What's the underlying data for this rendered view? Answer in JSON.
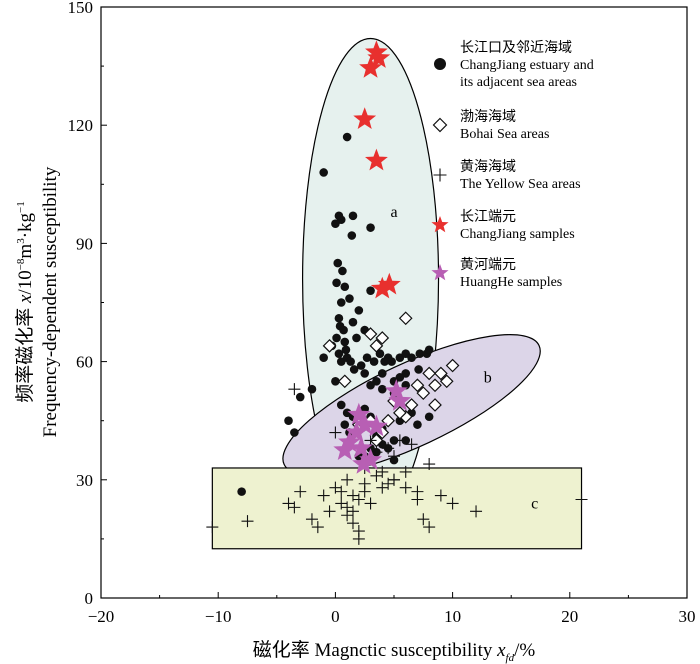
{
  "chart_data": {
    "type": "scatter",
    "xlabel": "磁化率 Magnctic susceptibility x_fd/%",
    "xlabel_parts": {
      "prefix": "磁化率 Magnctic susceptibility ",
      "var": "x",
      "sub": "fd",
      "suffix": "/%"
    },
    "ylabel": "频率磁化率 x/10⁻⁸m³·kg⁻¹ Frequency-dependent susceptibility",
    "ylabel_line1_parts": {
      "prefix": "频率磁化率 ",
      "var": "x",
      "unit": "/10",
      "sup1": "−8",
      "m": "m",
      "sup2": "3",
      "kg": "·kg",
      "sup3": "−1"
    },
    "ylabel_line2": "Frequency-dependent susceptibility",
    "xlim": [
      -20,
      30
    ],
    "ylim": [
      0,
      150
    ],
    "xticks": [
      "−20",
      "−10",
      "0",
      "10",
      "20",
      "30"
    ],
    "yticks": [
      "0",
      "30",
      "60",
      "90",
      "120",
      "150"
    ],
    "grid": false,
    "legend_position": "top-right",
    "legend": [
      {
        "marker": "circle",
        "color": "#111111",
        "zh": "长江口及邻近海域",
        "en1": "ChangJiang estuary and",
        "en2": "its adjacent sea areas"
      },
      {
        "marker": "diamond",
        "color": "#111111",
        "zh": "渤海海域",
        "en1": "Bohai Sea areas",
        "en2": ""
      },
      {
        "marker": "cross",
        "color": "#111111",
        "zh": "黄海海域",
        "en1": "The Yellow Sea areas",
        "en2": ""
      },
      {
        "marker": "star",
        "color": "#e8302e",
        "zh": "长江端元",
        "en1": "ChangJiang samples",
        "en2": ""
      },
      {
        "marker": "star",
        "color": "#b85fb4",
        "zh": "黄河端元",
        "en1": "HuangHe samples",
        "en2": ""
      }
    ],
    "regions": [
      {
        "label": "a",
        "shape": "ellipse",
        "fill": "#e6f1ee",
        "cx": 3,
        "cy": 81,
        "rx": 5.8,
        "ry": 61,
        "rotate": 0
      },
      {
        "label": "b",
        "shape": "ellipse",
        "fill": "#dcd5e8",
        "cx": 6.5,
        "cy": 49,
        "rx": 12,
        "ry": 10.5,
        "rotate": 25
      },
      {
        "label": "c",
        "shape": "rect",
        "fill": "#eef2d0",
        "x0": -10.5,
        "x1": 21,
        "y0": 12.5,
        "y1": 33
      }
    ],
    "region_label_positions": {
      "a": [
        5,
        98
      ],
      "b": [
        13,
        56
      ],
      "c": [
        17,
        24
      ]
    },
    "series": [
      {
        "name": "长江口及邻近海域 ChangJiang estuary and its adjacent sea areas",
        "marker": "circle",
        "color": "#111111",
        "x": [
          1,
          -1,
          0.5,
          0,
          0.3,
          1.5,
          1.4,
          0.2,
          0.6,
          3,
          0.1,
          0.8,
          1.2,
          3,
          0.5,
          2,
          0.3,
          1.5,
          0.4,
          0.7,
          2.5,
          0.1,
          0.8,
          1.8,
          0.9,
          -0.3,
          0.3,
          0.5,
          1,
          1.3,
          1.6,
          2.2,
          2.7,
          3.3,
          4.5,
          4.2,
          3.8,
          4.8,
          5.5,
          6,
          6.5,
          7.2,
          7.8,
          8,
          4,
          6,
          5.5,
          7.1,
          2.5,
          3.5,
          5,
          6,
          7,
          3,
          4,
          5,
          -1,
          0,
          -2,
          -3,
          -4,
          -3.5,
          0.5,
          1,
          1.5,
          2,
          0.8,
          1.2,
          2.5,
          3,
          3.5,
          4,
          5.5,
          6.5,
          7,
          8,
          5,
          4.5,
          3.5,
          2.5,
          6,
          5,
          4,
          3,
          2,
          -8
        ],
        "y": [
          117,
          108,
          96,
          95,
          97,
          97,
          92,
          85,
          83,
          94,
          80,
          79,
          76,
          78,
          75,
          73,
          71,
          70,
          69,
          68,
          68,
          66,
          65,
          66,
          63,
          64,
          62,
          60,
          61,
          60,
          58,
          59,
          61,
          60,
          61,
          60,
          62,
          60,
          61,
          62,
          61,
          62,
          62,
          63,
          57,
          57,
          56,
          58,
          57,
          55,
          55,
          54,
          54,
          54,
          53,
          52,
          61,
          55,
          53,
          51,
          45,
          42,
          49,
          47,
          46,
          45,
          44,
          42,
          48,
          46,
          41,
          43,
          45,
          47,
          44,
          46,
          40,
          38,
          37,
          36,
          40,
          35,
          39,
          38,
          36,
          27
        ]
      },
      {
        "name": "渤海海域 Bohai Sea areas",
        "marker": "diamond",
        "color": "#111111",
        "x": [
          6,
          10,
          9,
          9.5,
          8,
          8.5,
          4,
          3.5,
          3,
          -0.5,
          0.8,
          7,
          7.5,
          8.5,
          6,
          5.5,
          4.5,
          6.5,
          5,
          3,
          2,
          4,
          3.5,
          2.5
        ],
        "y": [
          71,
          59,
          57,
          55,
          57,
          54,
          66,
          64,
          67,
          64,
          55,
          54,
          52,
          49,
          46,
          47,
          45,
          49,
          50,
          45,
          44,
          42,
          40,
          44
        ]
      },
      {
        "name": "黄海海域 The Yellow Sea areas",
        "marker": "cross",
        "color": "#111111",
        "x": [
          -10.5,
          -7.5,
          -4,
          -3,
          -3.5,
          -1,
          0,
          1,
          1.5,
          2,
          2.5,
          3,
          4,
          4.5,
          5,
          6,
          7,
          7.5,
          8,
          9,
          10,
          12,
          21,
          -2,
          -1.5,
          -0.5,
          0.5,
          1,
          1.5,
          2.5,
          3.5,
          4,
          5,
          6,
          7,
          2,
          2,
          1.5,
          1,
          0.5,
          3.5,
          4.5,
          5.5,
          6.5,
          -3.5,
          0,
          3,
          5,
          8,
          2.5
        ],
        "y": [
          18,
          19.5,
          24,
          27,
          23,
          26,
          28,
          30,
          22,
          25,
          27,
          24,
          28,
          29,
          30,
          32,
          27,
          20,
          18,
          26,
          24,
          22,
          25,
          20,
          18,
          22,
          24,
          21,
          26,
          29,
          31,
          32,
          30,
          28,
          25,
          17,
          15,
          19,
          23,
          27,
          37,
          38,
          40,
          39,
          53,
          42,
          40,
          36,
          34,
          33
        ]
      },
      {
        "name": "长江端元 ChangJiang samples",
        "marker": "star",
        "color": "#e8302e",
        "x": [
          3.5,
          3.7,
          3.0,
          2.5,
          3.5,
          4.0,
          4.6
        ],
        "y": [
          138.5,
          137,
          134.5,
          121.5,
          111,
          78.5,
          79.5
        ]
      },
      {
        "name": "黄河端元 HuangHe samples",
        "marker": "star",
        "color": "#b85fb4",
        "x": [
          5.2,
          2.0,
          2.5,
          3.5,
          1.8,
          1.2,
          0.8,
          2.2,
          2.4,
          3.0,
          5.5
        ],
        "y": [
          52.5,
          46.5,
          44,
          43.5,
          42,
          39.5,
          37.5,
          38,
          34,
          35,
          50
        ]
      }
    ]
  }
}
